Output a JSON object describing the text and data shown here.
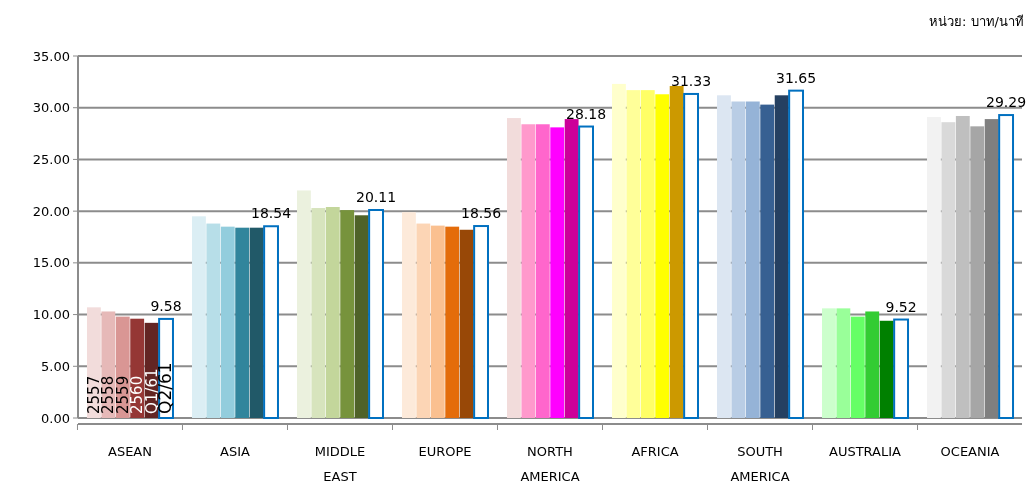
{
  "chart_data": {
    "type": "bar",
    "annotations": [
      "หน่วย: บาท/นาที"
    ],
    "categories": [
      "ASEAN",
      "ASIA",
      "MIDDLE EAST",
      "EUROPE",
      "NORTH AMERICA",
      "AFRICA",
      "SOUTH AMERICA",
      "AUSTRALIA",
      "OCEANIA"
    ],
    "ylim": [
      0,
      35
    ],
    "yticks": [
      {
        "value": 0,
        "label": "0.00"
      },
      {
        "value": 5,
        "label": "5.00"
      },
      {
        "value": 10,
        "label": "10.00"
      },
      {
        "value": 15,
        "label": "15.00"
      },
      {
        "value": 20,
        "label": "20.00"
      },
      {
        "value": 25,
        "label": "25.00"
      },
      {
        "value": 30,
        "label": "30.00"
      },
      {
        "value": 35,
        "label": "35.00"
      }
    ],
    "grid": true,
    "series": [
      {
        "name": "2557",
        "colors": [
          "#f2dcdb",
          "#dbeef4",
          "#ebf1de",
          "#fdeada",
          "#f2dcdb",
          "#ffffcc",
          "#dce6f2",
          "#ccffcc",
          "#f2f2f2"
        ],
        "values": [
          10.7,
          19.5,
          22.0,
          19.9,
          29.0,
          32.3,
          31.2,
          10.6,
          29.1
        ]
      },
      {
        "name": "2558",
        "colors": [
          "#e6b9b8",
          "#b7dee8",
          "#d7e4bd",
          "#fcd5b5",
          "#ff99cc",
          "#ffff99",
          "#b9cde5",
          "#99ff99",
          "#d9d9d9"
        ],
        "values": [
          10.3,
          18.8,
          20.3,
          18.8,
          28.4,
          31.7,
          30.6,
          10.6,
          28.6
        ]
      },
      {
        "name": "2559",
        "colors": [
          "#d99694",
          "#93cddd",
          "#c3d69b",
          "#fac090",
          "#ff66cc",
          "#ffff66",
          "#95b3d7",
          "#66ff66",
          "#bfbfbf"
        ],
        "values": [
          9.8,
          18.5,
          20.4,
          18.6,
          28.4,
          31.7,
          30.6,
          9.8,
          29.2
        ]
      },
      {
        "name": "2560",
        "colors": [
          "#953735",
          "#31859c",
          "#77933c",
          "#e46c0a",
          "#ff00ff",
          "#ffff00",
          "#376092",
          "#33cc33",
          "#a6a6a6"
        ],
        "values": [
          9.6,
          18.4,
          20.1,
          18.5,
          28.1,
          31.3,
          30.3,
          10.3,
          28.2
        ]
      },
      {
        "name": "Q1/61",
        "colors": [
          "#632523",
          "#215968",
          "#4f6228",
          "#984807",
          "#cc0099",
          "#cc9900",
          "#254061",
          "#008000",
          "#7f7f7f"
        ],
        "values": [
          9.2,
          18.4,
          19.6,
          18.2,
          28.9,
          32.1,
          31.2,
          9.4,
          28.9
        ]
      },
      {
        "name": "Q2/61",
        "color": "#0070c0",
        "values": [
          9.58,
          18.54,
          20.11,
          18.56,
          28.18,
          31.33,
          31.65,
          9.52,
          29.29
        ],
        "value_labels": [
          "9.58",
          "18.54",
          "20.11",
          "18.56",
          "28.18",
          "31.33",
          "31.65",
          "9.52",
          "29.29"
        ]
      }
    ]
  }
}
